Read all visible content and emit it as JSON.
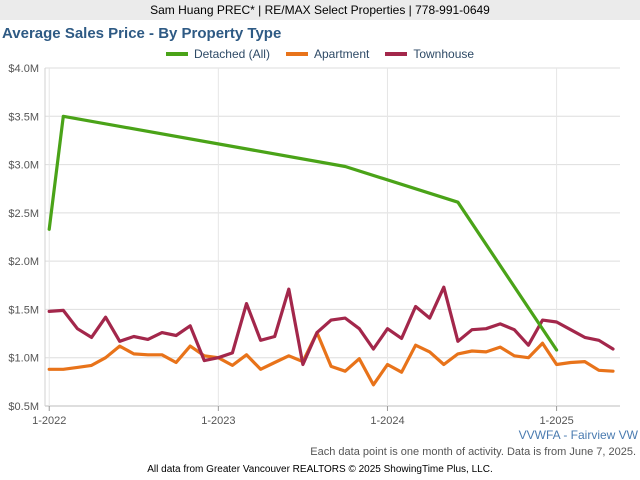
{
  "header": {
    "agent_line": "Sam Huang PREC* | RE/MAX Select Properties | 778-991-0649"
  },
  "chart_data": {
    "type": "line",
    "title": "Average Sales Price - By Property Type",
    "xlabel": "",
    "ylabel": "",
    "ylim": [
      0.5,
      4.0
    ],
    "y_unit": "$M",
    "y_ticks": [
      "$0.5M",
      "$1.0M",
      "$1.5M",
      "$2.0M",
      "$2.5M",
      "$3.0M",
      "$3.5M",
      "$4.0M"
    ],
    "y_tick_values": [
      0.5,
      1.0,
      1.5,
      2.0,
      2.5,
      3.0,
      3.5,
      4.0
    ],
    "x_ticks": [
      "1-2022",
      "1-2023",
      "1-2024",
      "1-2025"
    ],
    "x_tick_months": [
      0,
      12,
      24,
      36
    ],
    "xlim_months": [
      -0.3,
      40.5
    ],
    "grid": true,
    "legend_position": "top",
    "series": [
      {
        "name": "Detached (All)",
        "color": "#4aa318",
        "points": [
          [
            0,
            2.33
          ],
          [
            1,
            3.5
          ],
          [
            21,
            2.98
          ],
          [
            29,
            2.61
          ],
          [
            36,
            1.08
          ]
        ]
      },
      {
        "name": "Apartment",
        "color": "#e8731a",
        "points": [
          [
            0,
            0.88
          ],
          [
            1,
            0.88
          ],
          [
            2,
            0.9
          ],
          [
            3,
            0.92
          ],
          [
            4,
            1.0
          ],
          [
            5,
            1.12
          ],
          [
            6,
            1.04
          ],
          [
            7,
            1.03
          ],
          [
            8,
            1.03
          ],
          [
            9,
            0.95
          ],
          [
            10,
            1.12
          ],
          [
            11,
            1.02
          ],
          [
            12,
            1.0
          ],
          [
            13,
            0.92
          ],
          [
            14,
            1.03
          ],
          [
            15,
            0.88
          ],
          [
            16,
            0.95
          ],
          [
            17,
            1.02
          ],
          [
            18,
            0.96
          ],
          [
            19,
            1.26
          ],
          [
            20,
            0.91
          ],
          [
            21,
            0.86
          ],
          [
            22,
            0.99
          ],
          [
            23,
            0.72
          ],
          [
            24,
            0.93
          ],
          [
            25,
            0.85
          ],
          [
            26,
            1.13
          ],
          [
            27,
            1.06
          ],
          [
            28,
            0.93
          ],
          [
            29,
            1.04
          ],
          [
            30,
            1.07
          ],
          [
            31,
            1.06
          ],
          [
            32,
            1.11
          ],
          [
            33,
            1.02
          ],
          [
            34,
            1.0
          ],
          [
            35,
            1.15
          ],
          [
            36,
            0.93
          ],
          [
            37,
            0.95
          ],
          [
            38,
            0.96
          ],
          [
            39,
            0.87
          ],
          [
            40,
            0.86
          ]
        ]
      },
      {
        "name": "Townhouse",
        "color": "#a3274b",
        "points": [
          [
            0,
            1.48
          ],
          [
            1,
            1.49
          ],
          [
            2,
            1.3
          ],
          [
            3,
            1.21
          ],
          [
            4,
            1.42
          ],
          [
            5,
            1.17
          ],
          [
            6,
            1.22
          ],
          [
            7,
            1.19
          ],
          [
            8,
            1.26
          ],
          [
            9,
            1.23
          ],
          [
            10,
            1.33
          ],
          [
            11,
            0.97
          ],
          [
            12,
            1.0
          ],
          [
            13,
            1.05
          ],
          [
            14,
            1.56
          ],
          [
            15,
            1.18
          ],
          [
            16,
            1.22
          ],
          [
            17,
            1.71
          ],
          [
            18,
            0.93
          ],
          [
            19,
            1.26
          ],
          [
            20,
            1.39
          ],
          [
            21,
            1.41
          ],
          [
            22,
            1.3
          ],
          [
            23,
            1.09
          ],
          [
            24,
            1.3
          ],
          [
            25,
            1.2
          ],
          [
            26,
            1.53
          ],
          [
            27,
            1.41
          ],
          [
            28,
            1.73
          ],
          [
            29,
            1.17
          ],
          [
            30,
            1.29
          ],
          [
            31,
            1.3
          ],
          [
            32,
            1.35
          ],
          [
            33,
            1.29
          ],
          [
            34,
            1.13
          ],
          [
            35,
            1.39
          ],
          [
            36,
            1.37
          ],
          [
            37,
            1.29
          ],
          [
            38,
            1.21
          ],
          [
            39,
            1.18
          ],
          [
            40,
            1.09
          ]
        ]
      }
    ]
  },
  "footer": {
    "region": "VVWFA - Fairview VW",
    "note": "Each data point is one month of activity. Data is from June 7, 2025.",
    "source": "All data from Greater Vancouver REALTORS © 2025 ShowingTime Plus, LLC."
  }
}
